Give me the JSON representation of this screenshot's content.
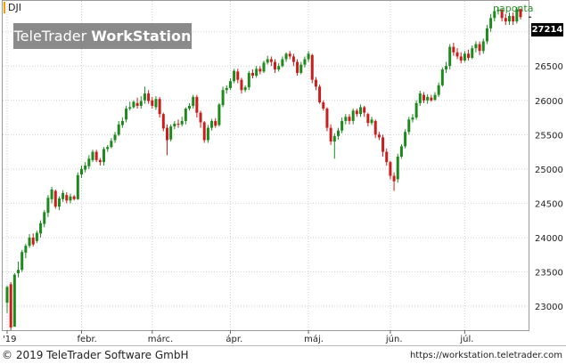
{
  "symbol": "DJI",
  "logo": {
    "brand": "TeleTrader",
    "product": "WorkStation"
  },
  "period": "naponta",
  "last_price": "27214",
  "footer": {
    "copyright": "© 2019 TeleTrader Software GmbH",
    "url": "https://workstation.teletrader.com"
  },
  "colors": {
    "up": "#1e8a1e",
    "down": "#c81e1e",
    "grid": "#cfcfcf",
    "logo_bg": "#8a8a8a",
    "accent": "#ff9900"
  },
  "chart_data": {
    "type": "candlestick",
    "ylim": [
      22650,
      27450
    ],
    "y_ticks": [
      23000,
      23500,
      24000,
      24500,
      25000,
      25500,
      26000,
      26500,
      27000
    ],
    "x_ticks": [
      {
        "label": "'19",
        "index": 0
      },
      {
        "label": "febr.",
        "index": 20
      },
      {
        "label": "márc.",
        "index": 39
      },
      {
        "label": "ápr.",
        "index": 60
      },
      {
        "label": "máj.",
        "index": 81
      },
      {
        "label": "jún.",
        "index": 103
      },
      {
        "label": "júl.",
        "index": 123
      }
    ],
    "grid": true,
    "candles": [
      [
        23050,
        23280,
        22900,
        23300
      ],
      [
        23320,
        22690,
        22650,
        23350
      ],
      [
        22700,
        23460,
        22700,
        23480
      ],
      [
        23480,
        23530,
        23420,
        23650
      ],
      [
        23530,
        23790,
        23500,
        23820
      ],
      [
        23780,
        23880,
        23700,
        23910
      ],
      [
        23880,
        24000,
        23850,
        24050
      ],
      [
        24000,
        23900,
        23870,
        24060
      ],
      [
        23950,
        24070,
        23920,
        24100
      ],
      [
        24060,
        24210,
        24000,
        24250
      ],
      [
        24200,
        24370,
        24150,
        24400
      ],
      [
        24360,
        24580,
        24300,
        24620
      ],
      [
        24560,
        24700,
        24500,
        24740
      ],
      [
        24680,
        24450,
        24420,
        24700
      ],
      [
        24450,
        24570,
        24400,
        24600
      ],
      [
        24560,
        24650,
        24520,
        24690
      ],
      [
        24620,
        24540,
        24500,
        24660
      ],
      [
        24540,
        24600,
        24500,
        24640
      ],
      [
        24600,
        24560,
        24540,
        24620
      ],
      [
        24560,
        24910,
        24550,
        24950
      ],
      [
        24920,
        25000,
        24870,
        25050
      ],
      [
        24990,
        25050,
        24950,
        25100
      ],
      [
        25040,
        25150,
        25000,
        25200
      ],
      [
        25130,
        25250,
        25100,
        25280
      ],
      [
        25250,
        25130,
        25100,
        25280
      ],
      [
        25130,
        25100,
        25050,
        25160
      ],
      [
        25100,
        25290,
        25050,
        25320
      ],
      [
        25290,
        25320,
        25250,
        25350
      ],
      [
        25320,
        25410,
        25300,
        25450
      ],
      [
        25420,
        25500,
        25380,
        25540
      ],
      [
        25500,
        25650,
        25480,
        25700
      ],
      [
        25640,
        25700,
        25600,
        25750
      ],
      [
        25720,
        25880,
        25680,
        25920
      ],
      [
        25880,
        25900,
        25850,
        25980
      ],
      [
        25900,
        25980,
        25880,
        26000
      ],
      [
        25960,
        25920,
        25880,
        26040
      ],
      [
        25920,
        25990,
        25880,
        26060
      ],
      [
        26000,
        26100,
        25950,
        26200
      ],
      [
        26100,
        25990,
        25950,
        26150
      ],
      [
        26000,
        25920,
        25880,
        26050
      ],
      [
        25900,
        26020,
        25860,
        26060
      ],
      [
        26020,
        25800,
        25750,
        26050
      ],
      [
        25800,
        25590,
        25550,
        25820
      ],
      [
        25600,
        25420,
        25200,
        25650
      ],
      [
        25430,
        25620,
        25400,
        25650
      ],
      [
        25620,
        25660,
        25580,
        25700
      ],
      [
        25660,
        25650,
        25600,
        25720
      ],
      [
        25650,
        25700,
        25620,
        25760
      ],
      [
        25700,
        25880,
        25650,
        25900
      ],
      [
        25880,
        25920,
        25850,
        25960
      ],
      [
        25920,
        26050,
        25880,
        26080
      ],
      [
        26050,
        25820,
        25750,
        26080
      ],
      [
        25820,
        25680,
        25600,
        25850
      ],
      [
        25680,
        25420,
        25380,
        25700
      ],
      [
        25420,
        25600,
        25380,
        25640
      ],
      [
        25600,
        25700,
        25560,
        25730
      ],
      [
        25700,
        25630,
        25600,
        25740
      ],
      [
        25640,
        25940,
        25620,
        25960
      ],
      [
        25930,
        26150,
        25900,
        26200
      ],
      [
        26150,
        26180,
        26100,
        26220
      ],
      [
        26180,
        26280,
        26150,
        26320
      ],
      [
        26280,
        26430,
        26250,
        26460
      ],
      [
        26420,
        26300,
        26250,
        26460
      ],
      [
        26300,
        26150,
        26100,
        26330
      ],
      [
        26150,
        26190,
        26120,
        26220
      ],
      [
        26190,
        26400,
        26150,
        26430
      ],
      [
        26400,
        26360,
        26320,
        26450
      ],
      [
        26360,
        26460,
        26330,
        26500
      ],
      [
        26460,
        26420,
        26380,
        26500
      ],
      [
        26420,
        26550,
        26400,
        26580
      ],
      [
        26550,
        26600,
        26520,
        26650
      ],
      [
        26600,
        26560,
        26500,
        26640
      ],
      [
        26560,
        26450,
        26400,
        26600
      ],
      [
        26450,
        26500,
        26420,
        26540
      ],
      [
        26500,
        26600,
        26480,
        26640
      ],
      [
        26600,
        26680,
        26560,
        26700
      ],
      [
        26680,
        26640,
        26600,
        26720
      ],
      [
        26640,
        26560,
        26500,
        26680
      ],
      [
        26560,
        26400,
        26360,
        26600
      ],
      [
        26400,
        26520,
        26380,
        26560
      ],
      [
        26520,
        26600,
        26480,
        26640
      ],
      [
        26600,
        26680,
        26560,
        26720
      ],
      [
        26660,
        26300,
        26250,
        26680
      ],
      [
        26300,
        26200,
        26150,
        26340
      ],
      [
        26200,
        25970,
        25950,
        26230
      ],
      [
        25970,
        25880,
        25850,
        26000
      ],
      [
        25880,
        25600,
        25550,
        25900
      ],
      [
        25600,
        25400,
        25350,
        25650
      ],
      [
        25400,
        25480,
        25150,
        25520
      ],
      [
        25480,
        25560,
        25430,
        25600
      ],
      [
        25560,
        25700,
        25520,
        25750
      ],
      [
        25700,
        25760,
        25650,
        25800
      ],
      [
        25760,
        25700,
        25650,
        25800
      ],
      [
        25700,
        25850,
        25650,
        25880
      ],
      [
        25850,
        25800,
        25760,
        25880
      ],
      [
        25800,
        25900,
        25760,
        25940
      ],
      [
        25900,
        25820,
        25760,
        25920
      ],
      [
        25800,
        25670,
        25620,
        25820
      ],
      [
        25670,
        25720,
        25640,
        25760
      ],
      [
        25700,
        25500,
        25450,
        25720
      ],
      [
        25500,
        25460,
        25420,
        25540
      ],
      [
        25460,
        25250,
        25180,
        25500
      ],
      [
        25250,
        25100,
        25050,
        25300
      ],
      [
        25100,
        24900,
        24850,
        25120
      ],
      [
        24900,
        24820,
        24680,
        24950
      ],
      [
        24850,
        25180,
        24800,
        25220
      ],
      [
        25180,
        25330,
        25150,
        25360
      ],
      [
        25330,
        25540,
        25300,
        25580
      ],
      [
        25540,
        25720,
        25500,
        25760
      ],
      [
        25720,
        25750,
        25680,
        25800
      ],
      [
        25750,
        25960,
        25720,
        26000
      ],
      [
        25960,
        26100,
        25920,
        26140
      ],
      [
        26080,
        26000,
        25960,
        26120
      ],
      [
        26000,
        26050,
        25950,
        26090
      ],
      [
        26040,
        26000,
        25980,
        26080
      ],
      [
        26010,
        26080,
        25990,
        26120
      ],
      [
        26080,
        26220,
        26050,
        26260
      ],
      [
        26220,
        26450,
        26200,
        26480
      ],
      [
        26450,
        26500,
        26400,
        26560
      ],
      [
        26500,
        26780,
        26450,
        26820
      ],
      [
        26780,
        26700,
        26650,
        26840
      ],
      [
        26700,
        26640,
        26600,
        26760
      ],
      [
        26640,
        26580,
        26540,
        26700
      ],
      [
        26580,
        26680,
        26560,
        26720
      ],
      [
        26680,
        26620,
        26580,
        26740
      ],
      [
        26620,
        26760,
        26600,
        26800
      ],
      [
        26760,
        26820,
        26700,
        26860
      ],
      [
        26820,
        26720,
        26660,
        26860
      ],
      [
        26720,
        26860,
        26680,
        26900
      ],
      [
        26860,
        27050,
        26820,
        27100
      ],
      [
        27050,
        27200,
        27000,
        27260
      ],
      [
        27200,
        27300,
        27150,
        27340
      ],
      [
        27300,
        27320,
        27250,
        27360
      ],
      [
        27320,
        27200,
        27150,
        27340
      ],
      [
        27200,
        27150,
        27100,
        27260
      ],
      [
        27150,
        27230,
        27100,
        27280
      ],
      [
        27230,
        27150,
        27100,
        27280
      ],
      [
        27150,
        27330,
        27120,
        27360
      ],
      [
        27330,
        27214,
        27180,
        27340
      ]
    ]
  }
}
